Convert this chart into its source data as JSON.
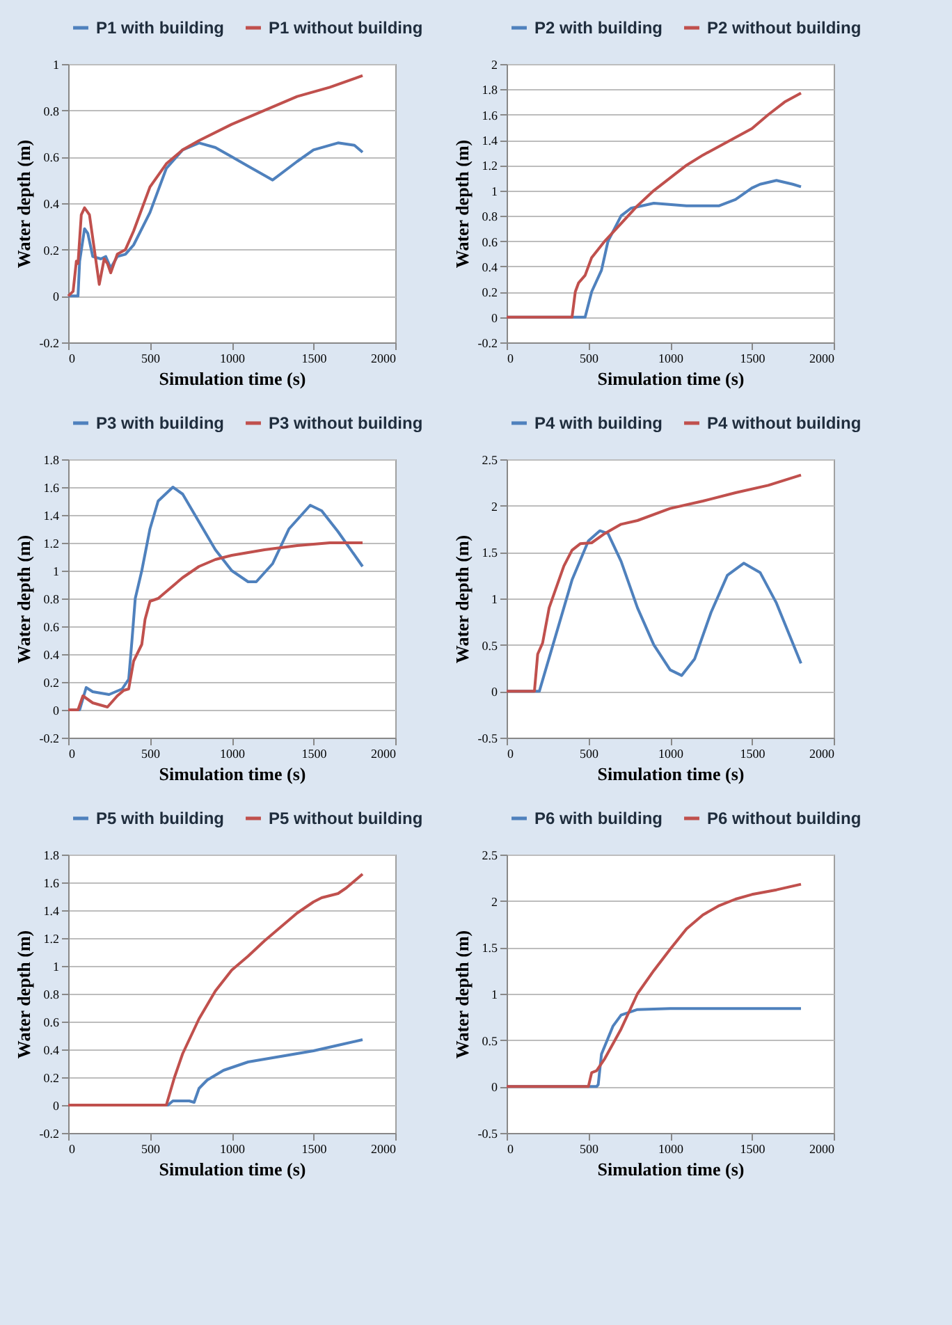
{
  "chart_data": [
    {
      "type": "line",
      "xlabel": "Simulation time (s)",
      "ylabel": "Water depth (m)",
      "xlim": [
        0,
        2000
      ],
      "xticks": [
        0,
        500,
        1000,
        1500,
        2000
      ],
      "ylim": [
        -0.2,
        1
      ],
      "yticks": [
        -0.2,
        0,
        0.2,
        0.4,
        0.6,
        0.8,
        1
      ],
      "grid": "y",
      "legend": "top",
      "series": [
        {
          "name": "P1 with building",
          "color": "#4f81bd",
          "x": [
            0,
            40,
            60,
            70,
            100,
            120,
            150,
            200,
            230,
            260,
            300,
            350,
            400,
            500,
            600,
            700,
            800,
            900,
            1000,
            1100,
            1250,
            1400,
            1500,
            1650,
            1750,
            1800
          ],
          "values": [
            0,
            0,
            0,
            0.15,
            0.29,
            0.27,
            0.17,
            0.16,
            0.17,
            0.12,
            0.17,
            0.18,
            0.22,
            0.36,
            0.55,
            0.63,
            0.66,
            0.64,
            0.6,
            0.56,
            0.5,
            0.58,
            0.63,
            0.66,
            0.65,
            0.62
          ]
        },
        {
          "name": "P1 without building",
          "color": "#c0504d",
          "x": [
            0,
            30,
            50,
            60,
            80,
            100,
            130,
            160,
            190,
            220,
            240,
            260,
            300,
            350,
            400,
            500,
            600,
            700,
            800,
            1000,
            1200,
            1400,
            1600,
            1800
          ],
          "values": [
            0,
            0.02,
            0.15,
            0.14,
            0.35,
            0.38,
            0.35,
            0.2,
            0.05,
            0.16,
            0.14,
            0.1,
            0.18,
            0.2,
            0.28,
            0.47,
            0.57,
            0.63,
            0.67,
            0.74,
            0.8,
            0.86,
            0.9,
            0.95
          ]
        }
      ]
    },
    {
      "type": "line",
      "xlabel": "Simulation time (s)",
      "ylabel": "Water depth (m)",
      "xlim": [
        0,
        2000
      ],
      "xticks": [
        0,
        500,
        1000,
        1500,
        2000
      ],
      "ylim": [
        -0.2,
        2
      ],
      "yticks": [
        -0.2,
        0,
        0.2,
        0.4,
        0.6,
        0.8,
        1,
        1.2,
        1.4,
        1.6,
        1.8,
        2
      ],
      "grid": "y",
      "legend": "top",
      "series": [
        {
          "name": "P2 with building",
          "color": "#4f81bd",
          "x": [
            0,
            480,
            520,
            580,
            620,
            700,
            760,
            900,
            1100,
            1300,
            1400,
            1500,
            1550,
            1650,
            1750,
            1800
          ],
          "values": [
            0,
            0,
            0.2,
            0.37,
            0.6,
            0.8,
            0.86,
            0.9,
            0.88,
            0.88,
            0.93,
            1.02,
            1.05,
            1.08,
            1.05,
            1.03
          ]
        },
        {
          "name": "P2 without building",
          "color": "#c0504d",
          "x": [
            0,
            400,
            420,
            440,
            480,
            520,
            600,
            700,
            800,
            900,
            1000,
            1100,
            1200,
            1300,
            1400,
            1500,
            1600,
            1700,
            1800
          ],
          "values": [
            0,
            0,
            0.2,
            0.27,
            0.33,
            0.47,
            0.6,
            0.74,
            0.88,
            1.0,
            1.1,
            1.2,
            1.28,
            1.35,
            1.42,
            1.49,
            1.6,
            1.7,
            1.77
          ]
        }
      ]
    },
    {
      "type": "line",
      "xlabel": "Simulation time (s)",
      "ylabel": "Water depth (m)",
      "xlim": [
        0,
        2000
      ],
      "xticks": [
        0,
        500,
        1000,
        1500,
        2000
      ],
      "ylim": [
        -0.2,
        1.8
      ],
      "yticks": [
        -0.2,
        0,
        0.2,
        0.4,
        0.6,
        0.8,
        1,
        1.2,
        1.4,
        1.6,
        1.8
      ],
      "grid": "y",
      "legend": "top",
      "series": [
        {
          "name": "P3 with building",
          "color": "#4f81bd",
          "x": [
            0,
            70,
            110,
            150,
            250,
            330,
            370,
            390,
            410,
            450,
            500,
            550,
            640,
            700,
            800,
            900,
            1000,
            1100,
            1150,
            1250,
            1350,
            1480,
            1550,
            1650,
            1800
          ],
          "values": [
            0,
            0,
            0.16,
            0.13,
            0.11,
            0.15,
            0.22,
            0.5,
            0.8,
            1.0,
            1.3,
            1.5,
            1.6,
            1.55,
            1.35,
            1.15,
            1.0,
            0.92,
            0.92,
            1.05,
            1.3,
            1.47,
            1.43,
            1.28,
            1.03
          ]
        },
        {
          "name": "P3 without building",
          "color": "#c0504d",
          "x": [
            0,
            60,
            90,
            150,
            240,
            300,
            340,
            370,
            400,
            450,
            470,
            500,
            550,
            600,
            700,
            800,
            900,
            1000,
            1200,
            1400,
            1600,
            1800
          ],
          "values": [
            0,
            0,
            0.1,
            0.05,
            0.02,
            0.1,
            0.14,
            0.15,
            0.35,
            0.47,
            0.65,
            0.78,
            0.8,
            0.85,
            0.95,
            1.03,
            1.08,
            1.11,
            1.15,
            1.18,
            1.2,
            1.2
          ]
        }
      ]
    },
    {
      "type": "line",
      "xlabel": "Simulation time (s)",
      "ylabel": "Water depth (m)",
      "xlim": [
        0,
        2000
      ],
      "xticks": [
        0,
        500,
        1000,
        1500,
        2000
      ],
      "ylim": [
        -0.5,
        2.5
      ],
      "yticks": [
        -0.5,
        0,
        0.5,
        1,
        1.5,
        2,
        2.5
      ],
      "grid": "y",
      "legend": "top",
      "series": [
        {
          "name": "P4 with building",
          "color": "#4f81bd",
          "x": [
            0,
            200,
            300,
            400,
            500,
            570,
            620,
            700,
            800,
            900,
            1000,
            1070,
            1150,
            1250,
            1350,
            1450,
            1550,
            1650,
            1800
          ],
          "values": [
            0,
            0,
            0.6,
            1.2,
            1.62,
            1.73,
            1.7,
            1.4,
            0.9,
            0.5,
            0.23,
            0.17,
            0.35,
            0.85,
            1.25,
            1.38,
            1.28,
            0.95,
            0.3
          ]
        },
        {
          "name": "P4 without building",
          "color": "#c0504d",
          "x": [
            0,
            170,
            190,
            220,
            260,
            300,
            350,
            400,
            450,
            520,
            600,
            700,
            800,
            1000,
            1200,
            1400,
            1600,
            1800
          ],
          "values": [
            0,
            0,
            0.4,
            0.52,
            0.9,
            1.1,
            1.35,
            1.52,
            1.59,
            1.6,
            1.7,
            1.8,
            1.84,
            1.97,
            2.05,
            2.14,
            2.22,
            2.33
          ]
        }
      ]
    },
    {
      "type": "line",
      "xlabel": "Simulation time (s)",
      "ylabel": "Water depth (m)",
      "xlim": [
        0,
        2000
      ],
      "xticks": [
        0,
        500,
        1000,
        1500,
        2000
      ],
      "ylim": [
        -0.2,
        1.8
      ],
      "yticks": [
        -0.2,
        0,
        0.2,
        0.4,
        0.6,
        0.8,
        1,
        1.2,
        1.4,
        1.6,
        1.8
      ],
      "grid": "y",
      "legend": "top",
      "series": [
        {
          "name": "P5 with building",
          "color": "#4f81bd",
          "x": [
            0,
            610,
            640,
            740,
            770,
            800,
            850,
            950,
            1100,
            1300,
            1500,
            1650,
            1800
          ],
          "values": [
            0,
            0,
            0.03,
            0.03,
            0.02,
            0.12,
            0.18,
            0.25,
            0.31,
            0.35,
            0.39,
            0.43,
            0.47
          ]
        },
        {
          "name": "P5 without building",
          "color": "#c0504d",
          "x": [
            0,
            600,
            650,
            700,
            800,
            900,
            1000,
            1100,
            1200,
            1300,
            1400,
            1500,
            1550,
            1650,
            1700,
            1800
          ],
          "values": [
            0,
            0,
            0.2,
            0.37,
            0.62,
            0.82,
            0.97,
            1.07,
            1.18,
            1.28,
            1.38,
            1.46,
            1.49,
            1.52,
            1.56,
            1.66
          ]
        }
      ]
    },
    {
      "type": "line",
      "xlabel": "Simulation time (s)",
      "ylabel": "Water depth (m)",
      "xlim": [
        0,
        2000
      ],
      "xticks": [
        0,
        500,
        1000,
        1500,
        2000
      ],
      "ylim": [
        -0.5,
        2.5
      ],
      "yticks": [
        -0.5,
        0,
        0.5,
        1,
        1.5,
        2,
        2.5
      ],
      "grid": "y",
      "legend": "top",
      "series": [
        {
          "name": "P6 with building",
          "color": "#4f81bd",
          "x": [
            0,
            550,
            560,
            580,
            650,
            700,
            800,
            1000,
            1500,
            1800
          ],
          "values": [
            0,
            0,
            0.02,
            0.35,
            0.65,
            0.77,
            0.83,
            0.84,
            0.84,
            0.84
          ]
        },
        {
          "name": "P6 without building",
          "color": "#c0504d",
          "x": [
            0,
            500,
            520,
            550,
            600,
            700,
            800,
            900,
            1000,
            1100,
            1200,
            1300,
            1400,
            1500,
            1650,
            1800
          ],
          "values": [
            0,
            0,
            0.15,
            0.17,
            0.3,
            0.62,
            1.0,
            1.25,
            1.48,
            1.7,
            1.85,
            1.95,
            2.02,
            2.07,
            2.12,
            2.18
          ]
        }
      ]
    }
  ]
}
